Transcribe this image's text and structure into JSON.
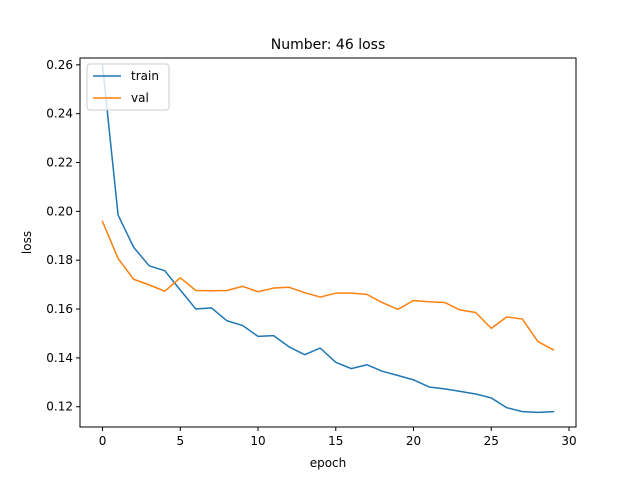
{
  "chart_data": {
    "type": "line",
    "title": "Number: 46 loss",
    "xlabel": "epoch",
    "ylabel": "loss",
    "xlim": [
      -1.45,
      30.45
    ],
    "ylim": [
      0.1117,
      0.2628
    ],
    "xticks": [
      0,
      5,
      10,
      15,
      20,
      25,
      30
    ],
    "yticks": [
      0.12,
      0.14,
      0.16,
      0.18,
      0.2,
      0.22,
      0.24,
      0.26
    ],
    "grid": false,
    "legend_position": "top-left",
    "x": [
      0,
      1,
      2,
      3,
      4,
      5,
      6,
      7,
      8,
      9,
      10,
      11,
      12,
      13,
      14,
      15,
      16,
      17,
      18,
      19,
      20,
      21,
      22,
      23,
      24,
      25,
      26,
      27,
      28,
      29
    ],
    "series": [
      {
        "name": "train",
        "color": "#1f77b4",
        "values": [
          0.2597,
          0.1985,
          0.1853,
          0.1777,
          0.1757,
          0.1678,
          0.16,
          0.1605,
          0.1552,
          0.1533,
          0.1488,
          0.1491,
          0.1445,
          0.1413,
          0.144,
          0.1382,
          0.1356,
          0.1372,
          0.1345,
          0.1328,
          0.131,
          0.1281,
          0.1273,
          0.1263,
          0.1252,
          0.1236,
          0.1196,
          0.118,
          0.1177,
          0.118
        ]
      },
      {
        "name": "val",
        "color": "#ff7f0e",
        "values": [
          0.1958,
          0.1807,
          0.1722,
          0.1699,
          0.1673,
          0.1728,
          0.1676,
          0.1675,
          0.1676,
          0.1693,
          0.1671,
          0.1686,
          0.1689,
          0.1667,
          0.1649,
          0.1665,
          0.1665,
          0.166,
          0.1626,
          0.1599,
          0.1635,
          0.163,
          0.1627,
          0.1596,
          0.1586,
          0.1521,
          0.1568,
          0.1559,
          0.1467,
          0.1433
        ]
      }
    ]
  }
}
